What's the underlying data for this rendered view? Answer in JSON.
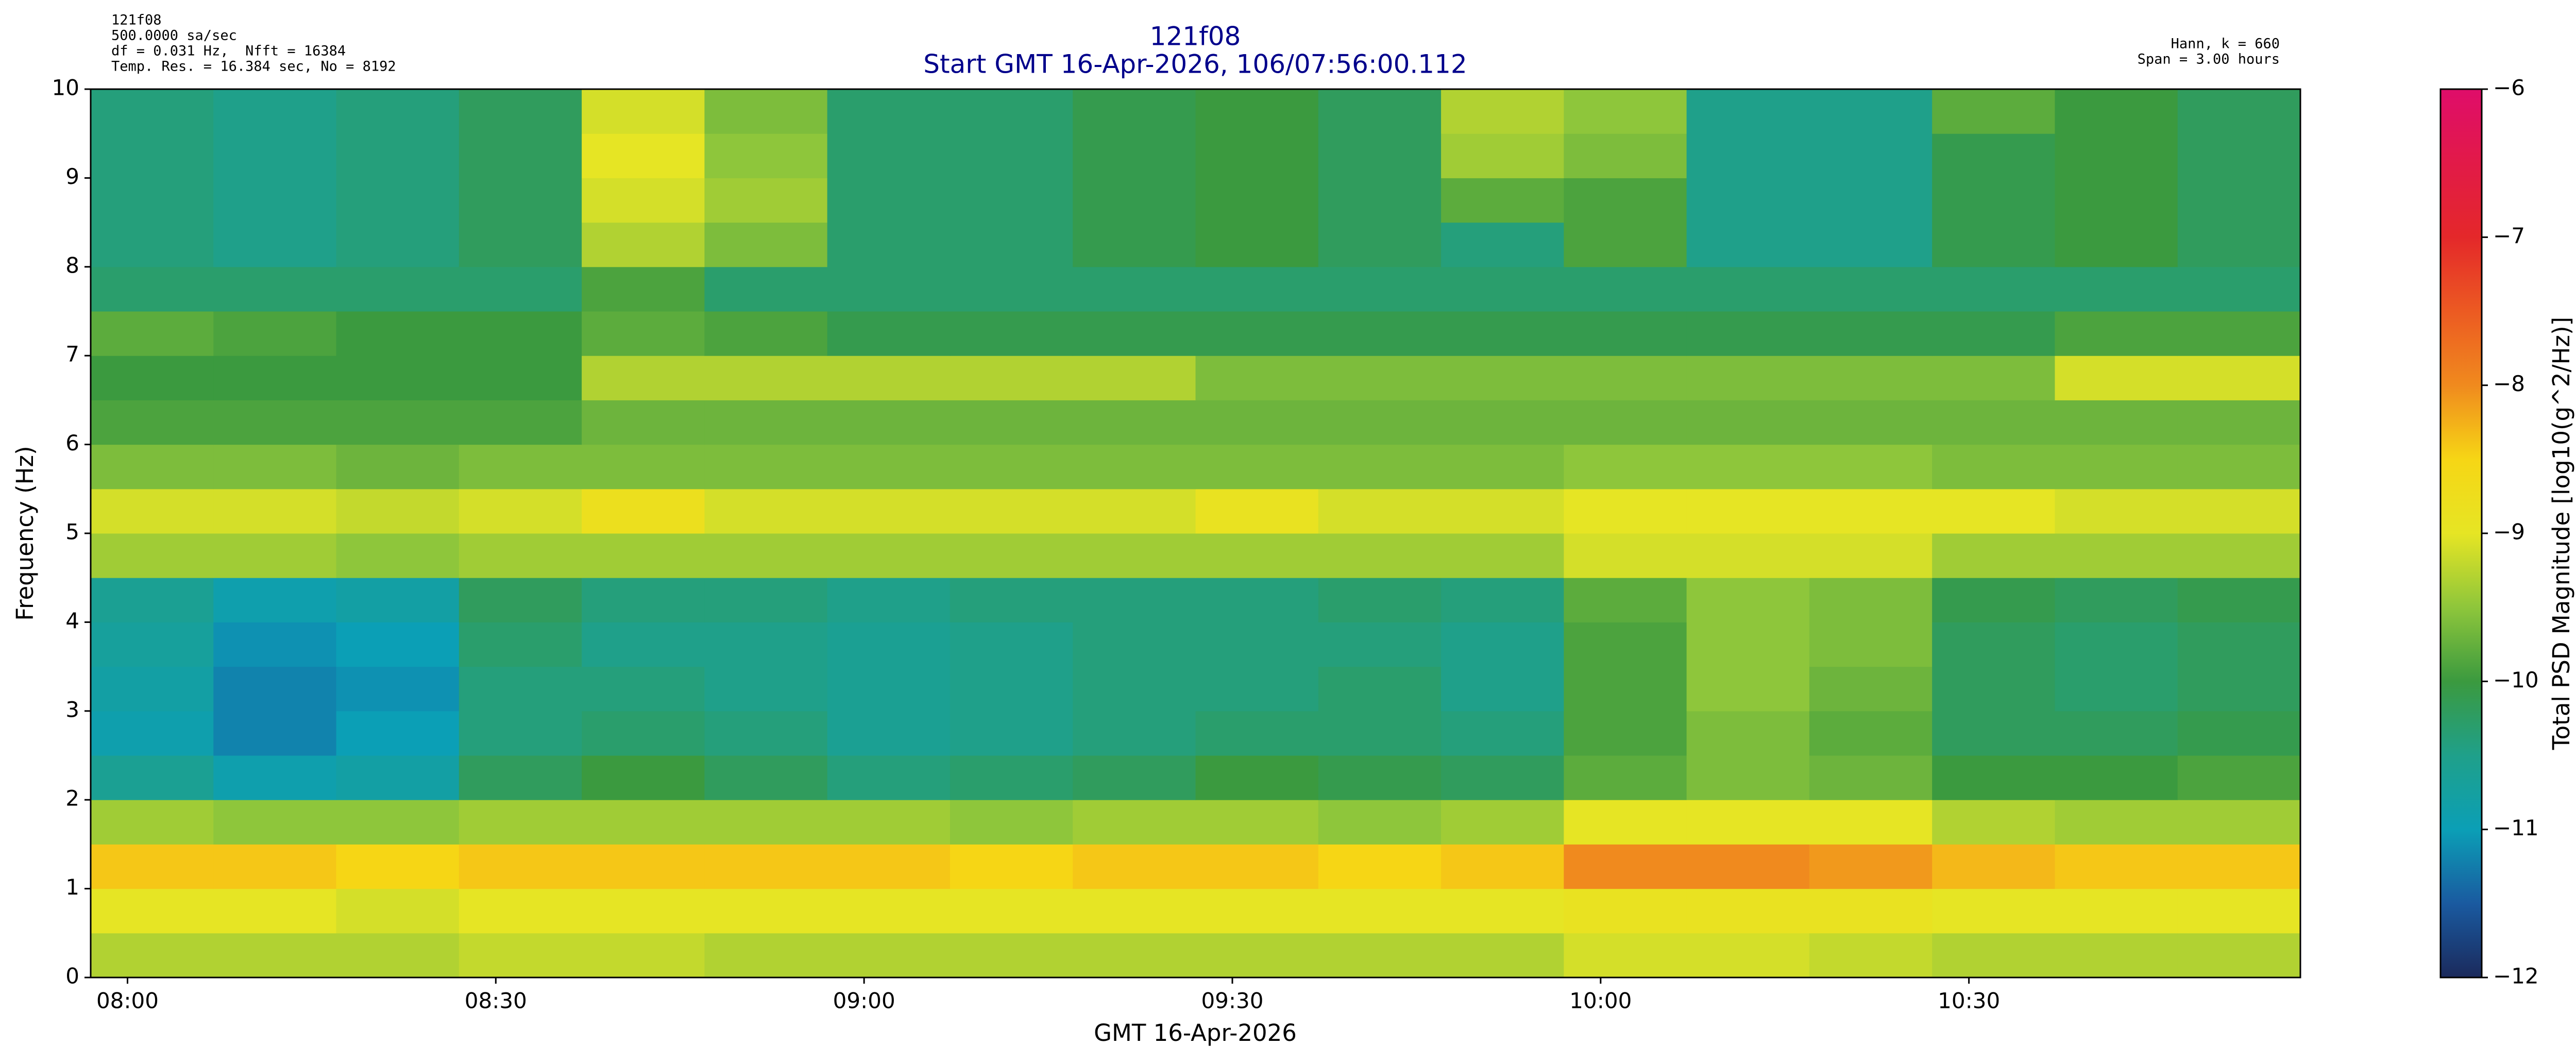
{
  "chart_data": {
    "type": "heatmap",
    "title": "121f08",
    "subtitle": "Start GMT 16-Apr-2026, 106/07:56:00.112",
    "info_left": [
      "121f08",
      "500.0000 sa/sec",
      "df = 0.031 Hz,  Nfft = 16384",
      "Temp. Res. = 16.384 sec, No = 8192"
    ],
    "info_right": [
      "Hann, k = 660",
      "Span = 3.00 hours"
    ],
    "xlabel": "GMT 16-Apr-2026",
    "ylabel": "Frequency (Hz)",
    "colorbar_label": "Total PSD Magnitude [log10(g^2/Hz)]",
    "xlim": [
      477,
      657
    ],
    "xticks": [
      {
        "value": 480,
        "label": "08:00"
      },
      {
        "value": 510,
        "label": "08:30"
      },
      {
        "value": 540,
        "label": "09:00"
      },
      {
        "value": 570,
        "label": "09:30"
      },
      {
        "value": 600,
        "label": "10:00"
      },
      {
        "value": 630,
        "label": "10:30"
      }
    ],
    "ylim": [
      0,
      10
    ],
    "yticks": [
      0,
      1,
      2,
      3,
      4,
      5,
      6,
      7,
      8,
      9,
      10
    ],
    "clim": [
      -12,
      -6
    ],
    "cticks": [
      {
        "value": -12,
        "label": "−12"
      },
      {
        "value": -11,
        "label": "−11"
      },
      {
        "value": -10,
        "label": "−10"
      },
      {
        "value": -9,
        "label": "−9"
      },
      {
        "value": -8,
        "label": "−8"
      },
      {
        "value": -7,
        "label": "−7"
      },
      {
        "value": -6,
        "label": "−6"
      }
    ],
    "colormap": [
      "#1b2a5c",
      "#1a5aa0",
      "#0b9fb6",
      "#1fa08a",
      "#3b9a3f",
      "#8ec63b",
      "#e6e524",
      "#f6d615",
      "#f08a1e",
      "#ec5a22",
      "#e4282a",
      "#e21a48",
      "#df0d6a"
    ],
    "x_bins": [
      477,
      487,
      497,
      507,
      517,
      527,
      537,
      547,
      557,
      567,
      577,
      587,
      597,
      607,
      617,
      627,
      637,
      647,
      657
    ],
    "y_bins": [
      0,
      0.5,
      1,
      1.5,
      2,
      2.5,
      3,
      3.5,
      4,
      4.5,
      5,
      5.5,
      6,
      6.5,
      7,
      7.5,
      8,
      8.5,
      9,
      9.5,
      10
    ],
    "z": [
      [
        -9.3,
        -9.3,
        -9.3,
        -9.2,
        -9.2,
        -9.3,
        -9.3,
        -9.3,
        -9.3,
        -9.3,
        -9.3,
        -9.3,
        -9.1,
        -9.1,
        -9.2,
        -9.3,
        -9.3,
        -9.3
      ],
      [
        -9.0,
        -9.0,
        -9.1,
        -9.0,
        -9.0,
        -9.0,
        -9.0,
        -9.0,
        -9.0,
        -9.0,
        -9.0,
        -9.0,
        -8.9,
        -8.9,
        -8.9,
        -9.0,
        -9.0,
        -9.0
      ],
      [
        -8.4,
        -8.4,
        -8.5,
        -8.4,
        -8.4,
        -8.4,
        -8.4,
        -8.5,
        -8.4,
        -8.4,
        -8.5,
        -8.4,
        -8.0,
        -8.0,
        -8.1,
        -8.3,
        -8.4,
        -8.4
      ],
      [
        -9.4,
        -9.5,
        -9.5,
        -9.4,
        -9.4,
        -9.4,
        -9.4,
        -9.5,
        -9.4,
        -9.4,
        -9.5,
        -9.4,
        -9.0,
        -9.0,
        -9.0,
        -9.3,
        -9.4,
        -9.4
      ],
      [
        -10.6,
        -10.9,
        -10.8,
        -10.2,
        -10.0,
        -10.2,
        -10.4,
        -10.3,
        -10.2,
        -10.0,
        -10.1,
        -10.2,
        -9.8,
        -9.6,
        -9.7,
        -10.0,
        -10.0,
        -9.9
      ],
      [
        -10.9,
        -11.2,
        -11.0,
        -10.4,
        -10.3,
        -10.4,
        -10.6,
        -10.5,
        -10.4,
        -10.3,
        -10.3,
        -10.4,
        -9.9,
        -9.6,
        -9.8,
        -10.2,
        -10.2,
        -10.1
      ],
      [
        -10.8,
        -11.2,
        -11.1,
        -10.4,
        -10.4,
        -10.5,
        -10.6,
        -10.5,
        -10.4,
        -10.4,
        -10.3,
        -10.5,
        -9.9,
        -9.5,
        -9.7,
        -10.2,
        -10.3,
        -10.2
      ],
      [
        -10.7,
        -11.1,
        -11.0,
        -10.3,
        -10.5,
        -10.5,
        -10.6,
        -10.5,
        -10.4,
        -10.4,
        -10.4,
        -10.5,
        -9.9,
        -9.5,
        -9.6,
        -10.2,
        -10.3,
        -10.2
      ],
      [
        -10.6,
        -10.9,
        -10.8,
        -10.2,
        -10.4,
        -10.4,
        -10.5,
        -10.4,
        -10.4,
        -10.4,
        -10.3,
        -10.4,
        -9.8,
        -9.5,
        -9.6,
        -10.1,
        -10.2,
        -10.1
      ],
      [
        -9.4,
        -9.4,
        -9.5,
        -9.4,
        -9.4,
        -9.4,
        -9.4,
        -9.4,
        -9.4,
        -9.4,
        -9.4,
        -9.4,
        -9.1,
        -9.1,
        -9.1,
        -9.4,
        -9.4,
        -9.4
      ],
      [
        -9.1,
        -9.1,
        -9.2,
        -9.1,
        -8.8,
        -9.1,
        -9.1,
        -9.1,
        -9.1,
        -8.9,
        -9.1,
        -9.1,
        -9.0,
        -9.0,
        -9.0,
        -9.0,
        -9.1,
        -9.1
      ],
      [
        -9.6,
        -9.6,
        -9.7,
        -9.6,
        -9.6,
        -9.6,
        -9.6,
        -9.6,
        -9.6,
        -9.6,
        -9.6,
        -9.6,
        -9.5,
        -9.5,
        -9.5,
        -9.6,
        -9.6,
        -9.6
      ],
      [
        -9.9,
        -9.9,
        -9.9,
        -9.9,
        -9.7,
        -9.7,
        -9.7,
        -9.7,
        -9.7,
        -9.7,
        -9.7,
        -9.7,
        -9.7,
        -9.7,
        -9.7,
        -9.7,
        -9.7,
        -9.7
      ],
      [
        -10.0,
        -10.0,
        -10.0,
        -10.0,
        -9.3,
        -9.3,
        -9.3,
        -9.3,
        -9.3,
        -9.6,
        -9.6,
        -9.6,
        -9.6,
        -9.6,
        -9.6,
        -9.6,
        -9.1,
        -9.1
      ],
      [
        -9.8,
        -9.9,
        -10.0,
        -10.0,
        -9.8,
        -9.9,
        -10.1,
        -10.1,
        -10.1,
        -10.1,
        -10.1,
        -10.1,
        -10.1,
        -10.1,
        -10.1,
        -10.1,
        -9.9,
        -9.9
      ],
      [
        -10.3,
        -10.3,
        -10.3,
        -10.3,
        -9.9,
        -10.3,
        -10.3,
        -10.3,
        -10.3,
        -10.3,
        -10.3,
        -10.3,
        -10.3,
        -10.3,
        -10.3,
        -10.3,
        -10.3,
        -10.3
      ],
      [
        -10.4,
        -10.5,
        -10.4,
        -10.2,
        -9.3,
        -9.6,
        -10.3,
        -10.3,
        -10.1,
        -10.0,
        -10.2,
        -10.4,
        -9.9,
        -10.5,
        -10.5,
        -10.1,
        -10.0,
        -10.2
      ],
      [
        -10.4,
        -10.5,
        -10.4,
        -10.2,
        -9.1,
        -9.4,
        -10.3,
        -10.3,
        -10.1,
        -10.0,
        -10.2,
        -9.8,
        -9.9,
        -10.5,
        -10.5,
        -10.1,
        -10.0,
        -10.2
      ],
      [
        -10.4,
        -10.5,
        -10.4,
        -10.2,
        -9.0,
        -9.5,
        -10.3,
        -10.3,
        -10.1,
        -10.0,
        -10.2,
        -9.4,
        -9.6,
        -10.5,
        -10.5,
        -10.1,
        -10.0,
        -10.2
      ],
      [
        -10.4,
        -10.5,
        -10.4,
        -10.2,
        -9.1,
        -9.6,
        -10.3,
        -10.3,
        -10.1,
        -10.0,
        -10.2,
        -9.3,
        -9.5,
        -10.5,
        -10.5,
        -9.8,
        -10.0,
        -10.2
      ]
    ]
  }
}
